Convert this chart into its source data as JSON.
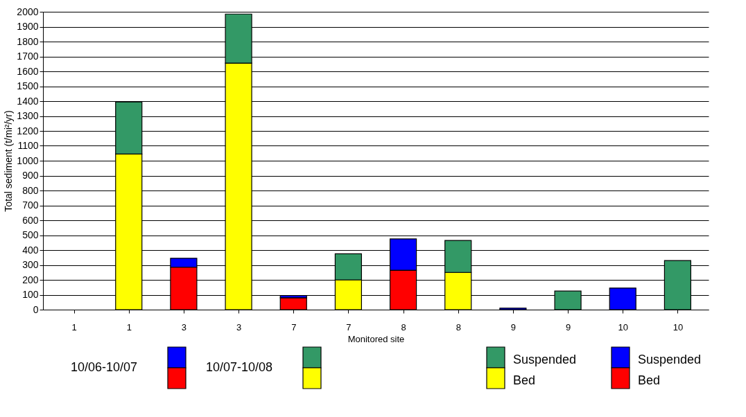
{
  "chart_data": {
    "type": "bar",
    "stacked": true,
    "xlabel": "Monitored site",
    "ylabel": "Total sediment (t/mi²/yr)",
    "categories": [
      "1",
      "1",
      "3",
      "3",
      "7",
      "7",
      "8",
      "8",
      "9",
      "9",
      "10",
      "10"
    ],
    "series": [
      {
        "name": "Bed",
        "color": "#ff0000",
        "values": [
          null,
          null,
          285,
          null,
          80,
          null,
          265,
          null,
          null,
          null,
          null,
          null
        ]
      },
      {
        "name": "Suspended",
        "color": "#0000ff",
        "values": [
          null,
          null,
          60,
          null,
          15,
          null,
          210,
          null,
          10,
          null,
          145,
          null
        ]
      },
      {
        "name": "Bed",
        "color": "#ffff00",
        "values": [
          null,
          1045,
          null,
          1655,
          null,
          200,
          null,
          250,
          null,
          null,
          null,
          null
        ]
      },
      {
        "name": "Suspended",
        "color": "#339966",
        "values": [
          null,
          350,
          null,
          330,
          null,
          175,
          null,
          215,
          null,
          125,
          null,
          330
        ]
      }
    ],
    "annotations": [
      "10/06-10/07",
      "10/07-10/08"
    ],
    "ylim": [
      0,
      2000
    ],
    "yticks": [
      0,
      100,
      200,
      300,
      400,
      500,
      600,
      700,
      800,
      900,
      1000,
      1100,
      1200,
      1300,
      1400,
      1500,
      1600,
      1700,
      1800,
      1900,
      2000
    ],
    "grid": "y",
    "legend": "bottom"
  }
}
